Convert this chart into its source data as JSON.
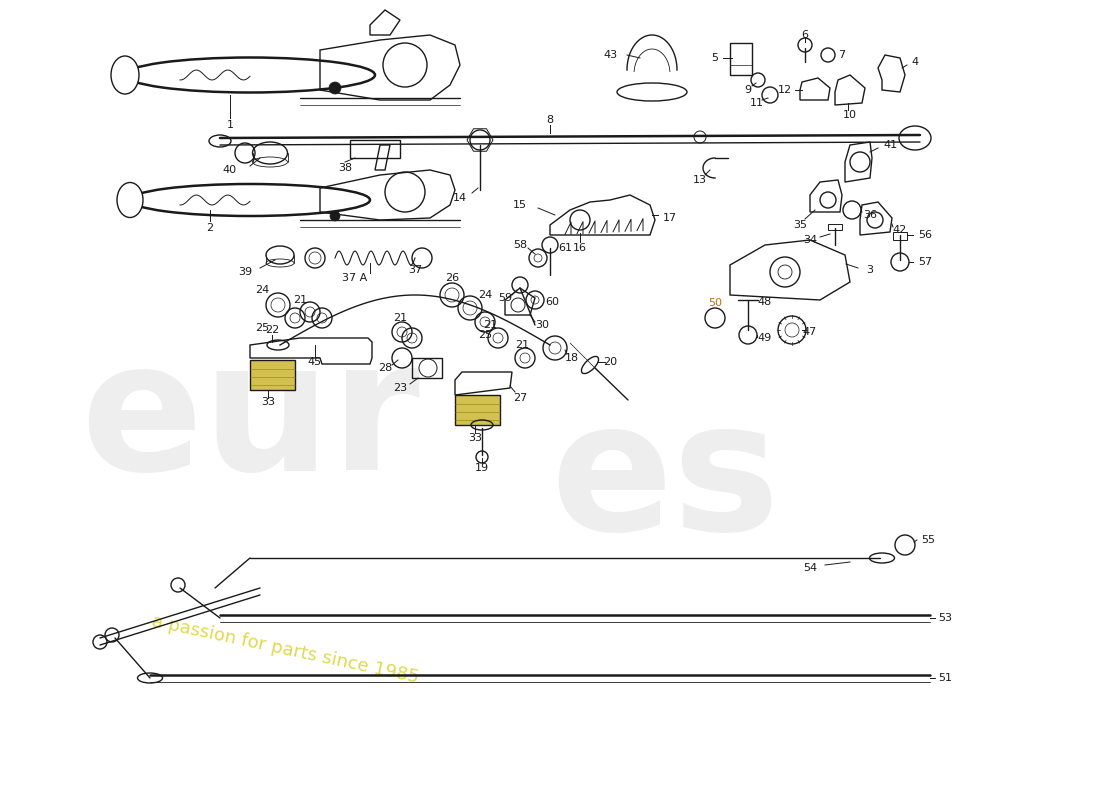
{
  "bg": "#ffffff",
  "lc": "#1a1a1a",
  "lw": 1.0,
  "lw_thick": 1.8,
  "label_fs": 8,
  "wm_color": "#d8d8d8",
  "wm_yellow": "#d8d020",
  "figw": 11.0,
  "figh": 8.0,
  "dpi": 100,
  "xlim": [
    0,
    11
  ],
  "ylim": [
    0,
    8
  ]
}
